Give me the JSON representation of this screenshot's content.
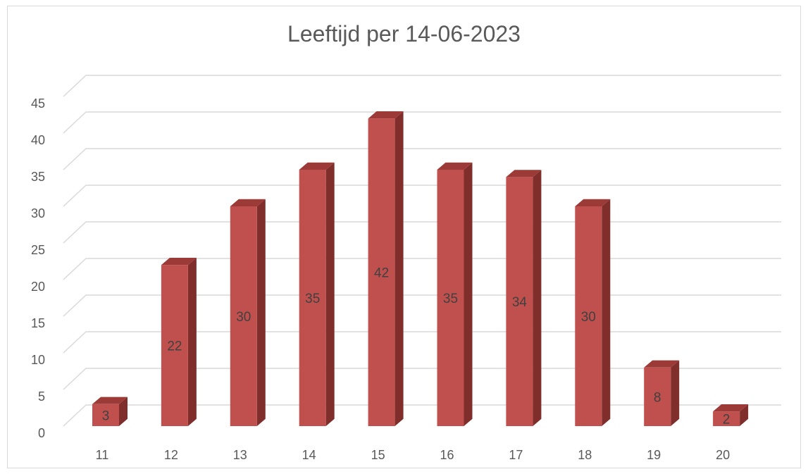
{
  "chart_data": {
    "type": "bar",
    "title": "Leeftijd per 14-06-2023",
    "categories": [
      "11",
      "12",
      "13",
      "14",
      "15",
      "16",
      "17",
      "18",
      "19",
      "20"
    ],
    "values": [
      3,
      22,
      30,
      35,
      42,
      35,
      34,
      30,
      8,
      2
    ],
    "ylim": [
      0,
      45
    ],
    "yticks": [
      0,
      5,
      10,
      15,
      20,
      25,
      30,
      35,
      40,
      45
    ],
    "grid": true,
    "three_d": true,
    "colors": {
      "bar_front": "#c0504d",
      "bar_side": "#7f2e2c",
      "bar_top": "#9b3a37",
      "grid": "#d9d9d9",
      "text": "#595959"
    }
  }
}
